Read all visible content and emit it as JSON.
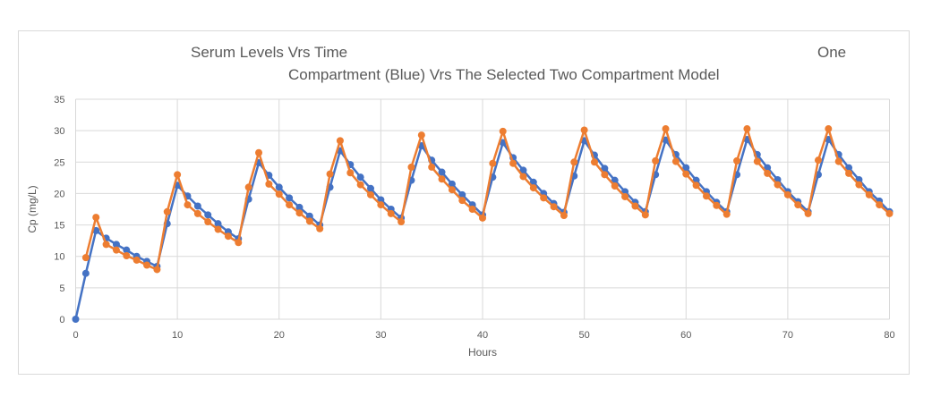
{
  "chart_data": {
    "type": "line",
    "title": "Serum Levels Vrs Time One Compartment (Blue) Vrs The Selected Two Compartment Model",
    "title_parts": {
      "line1": "Serum Levels Vrs Time",
      "line1_right": "One",
      "line2": "Compartment (Blue) Vrs The Selected Two Compartment Model"
    },
    "xlabel": "Hours",
    "ylabel": "Cp (mg/L)",
    "xlim": [
      0,
      80
    ],
    "ylim": [
      0,
      35
    ],
    "x_ticks": [
      0,
      10,
      20,
      30,
      40,
      50,
      60,
      70,
      80
    ],
    "y_ticks": [
      0,
      5,
      10,
      15,
      20,
      25,
      30,
      35
    ],
    "grid": true,
    "legend": "none",
    "x": [
      0,
      1,
      2,
      3,
      4,
      5,
      6,
      7,
      8,
      9,
      10,
      11,
      12,
      13,
      14,
      15,
      16,
      17,
      18,
      19,
      20,
      21,
      22,
      23,
      24,
      25,
      26,
      27,
      28,
      29,
      30,
      31,
      32,
      33,
      34,
      35,
      36,
      37,
      38,
      39,
      40,
      41,
      42,
      43,
      44,
      45,
      46,
      47,
      48,
      49,
      50,
      51,
      52,
      53,
      54,
      55,
      56,
      57,
      58,
      59,
      60,
      61,
      62,
      63,
      64,
      65,
      66,
      67,
      68,
      69,
      70,
      71,
      72,
      73,
      74,
      75,
      76,
      77,
      78,
      79,
      80
    ],
    "series": [
      {
        "name": "One Compartment",
        "color": "#4472C4",
        "values": [
          0,
          7.3,
          14.1,
          12.9,
          11.9,
          11.0,
          10.0,
          9.2,
          8.4,
          15.2,
          21.3,
          19.6,
          18.0,
          16.6,
          15.2,
          13.9,
          12.8,
          19.1,
          24.9,
          22.9,
          21.0,
          19.3,
          17.8,
          16.4,
          15.0,
          21.0,
          26.8,
          24.6,
          22.6,
          20.8,
          19.0,
          17.5,
          16.1,
          22.1,
          27.6,
          25.3,
          23.4,
          21.5,
          19.8,
          18.2,
          16.6,
          22.6,
          28.1,
          25.7,
          23.7,
          21.8,
          20.0,
          18.4,
          17.0,
          22.8,
          28.4,
          26.1,
          24.0,
          22.1,
          20.3,
          18.6,
          17.1,
          23.0,
          28.5,
          26.2,
          24.1,
          22.1,
          20.3,
          18.6,
          17.1,
          23.0,
          28.6,
          26.2,
          24.1,
          22.2,
          20.3,
          18.7,
          17.1,
          23.0,
          28.6,
          26.2,
          24.1,
          22.2,
          20.3,
          18.8,
          17.1
        ]
      },
      {
        "name": "Two Compartment",
        "color": "#ED7D31",
        "values": [
          null,
          9.8,
          16.2,
          11.9,
          11.0,
          10.1,
          9.4,
          8.6,
          7.9,
          17.1,
          23.0,
          18.2,
          16.8,
          15.5,
          14.3,
          13.2,
          12.2,
          21.0,
          26.5,
          21.5,
          19.9,
          18.2,
          16.9,
          15.6,
          14.4,
          23.1,
          28.4,
          23.3,
          21.4,
          19.8,
          18.2,
          16.8,
          15.5,
          24.2,
          29.3,
          24.2,
          22.3,
          20.6,
          18.9,
          17.5,
          16.1,
          24.8,
          29.9,
          24.8,
          22.7,
          20.9,
          19.3,
          17.9,
          16.5,
          25.0,
          30.1,
          25.0,
          23.0,
          21.2,
          19.5,
          18.0,
          16.6,
          25.2,
          30.3,
          25.1,
          23.1,
          21.3,
          19.6,
          18.1,
          16.7,
          25.2,
          30.3,
          25.1,
          23.2,
          21.4,
          19.8,
          18.2,
          16.8,
          25.3,
          30.3,
          25.1,
          23.2,
          21.4,
          19.8,
          18.2,
          16.8
        ]
      }
    ]
  }
}
